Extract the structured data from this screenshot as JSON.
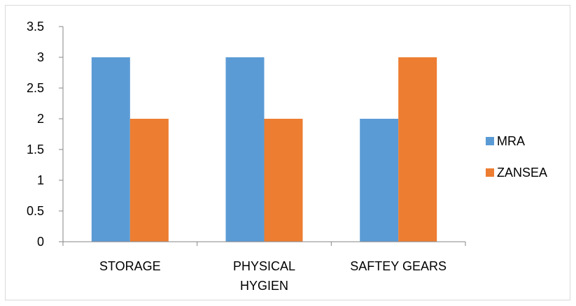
{
  "chart_data": {
    "type": "bar",
    "title": "",
    "xlabel": "",
    "ylabel": "",
    "categories": [
      [
        "STORAGE"
      ],
      [
        "PHYSICAL",
        "HYGIEN"
      ],
      [
        "SAFTEY GEARS"
      ]
    ],
    "series": [
      {
        "name": "MRA",
        "values": [
          3,
          3,
          2
        ],
        "color": "#5b9bd5"
      },
      {
        "name": "ZANSEA",
        "values": [
          2,
          2,
          3
        ],
        "color": "#ed7d31"
      }
    ],
    "ylim": [
      0,
      3.5
    ],
    "yticks": [
      "0",
      "0.5",
      "1",
      "1.5",
      "2",
      "2.5",
      "3",
      "3.5"
    ],
    "grid": false,
    "legend_position": "right"
  }
}
